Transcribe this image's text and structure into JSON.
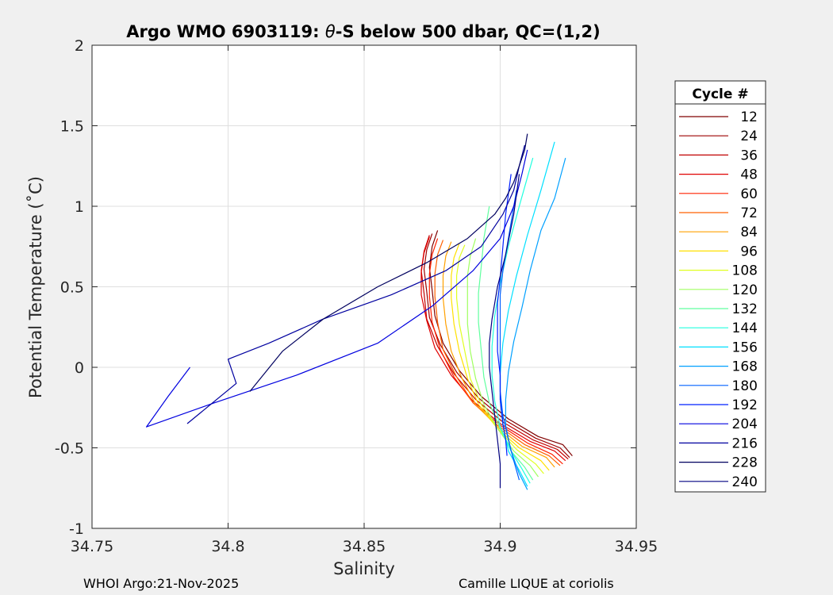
{
  "chart_data": {
    "type": "line",
    "title_prefix": "Argo WMO 6903119: ",
    "title_theta": "θ",
    "title_suffix": "-S below 500 dbar,  QC=(1,2)",
    "xlabel": "Salinity",
    "ylabel": "Potential Temperature (˚C)",
    "xlim": [
      34.75,
      34.95
    ],
    "ylim": [
      -1,
      2
    ],
    "xticks": [
      34.75,
      34.8,
      34.85,
      34.9,
      34.95
    ],
    "xtick_labels": [
      "34.75",
      "34.8",
      "34.85",
      "34.9",
      "34.95"
    ],
    "yticks": [
      -1,
      -0.5,
      0,
      0.5,
      1,
      1.5,
      2
    ],
    "ytick_labels": [
      "-1",
      "-0.5",
      "0",
      "0.5",
      "1",
      "1.5",
      "2"
    ],
    "grid": true,
    "legend_title": "Cycle #",
    "legend_position": "outside-right",
    "series": [
      {
        "name": "12",
        "color": "#800000",
        "salinity": [
          34.9265,
          34.923,
          34.914,
          34.903,
          34.893,
          34.885,
          34.879,
          34.876,
          34.875,
          34.874,
          34.875,
          34.877
        ],
        "theta": [
          -0.55,
          -0.48,
          -0.43,
          -0.32,
          -0.18,
          -0.02,
          0.15,
          0.32,
          0.48,
          0.62,
          0.75,
          0.85
        ]
      },
      {
        "name": "24",
        "color": "#9e0000",
        "salinity": [
          34.9255,
          34.922,
          34.913,
          34.902,
          34.892,
          34.884,
          34.878,
          34.874,
          34.873,
          34.872,
          34.873,
          34.875
        ],
        "theta": [
          -0.56,
          -0.5,
          -0.44,
          -0.33,
          -0.19,
          -0.03,
          0.14,
          0.31,
          0.47,
          0.61,
          0.73,
          0.83
        ]
      },
      {
        "name": "36",
        "color": "#c00000",
        "salinity": [
          34.925,
          34.921,
          34.912,
          34.901,
          34.891,
          34.883,
          34.877,
          34.873,
          34.872,
          34.871,
          34.872,
          34.874
        ],
        "theta": [
          -0.57,
          -0.51,
          -0.45,
          -0.34,
          -0.2,
          -0.04,
          0.13,
          0.3,
          0.46,
          0.6,
          0.72,
          0.82
        ]
      },
      {
        "name": "48",
        "color": "#e00000",
        "salinity": [
          34.924,
          34.92,
          34.911,
          34.9,
          34.89,
          34.882,
          34.876,
          34.873,
          34.871,
          34.871,
          34.872,
          34.874
        ],
        "theta": [
          -0.58,
          -0.52,
          -0.46,
          -0.35,
          -0.21,
          -0.05,
          0.12,
          0.29,
          0.45,
          0.59,
          0.71,
          0.81
        ]
      },
      {
        "name": "60",
        "color": "#ff2000",
        "salinity": [
          34.923,
          34.919,
          34.91,
          34.9,
          34.89,
          34.883,
          34.878,
          34.875,
          34.874,
          34.874,
          34.875,
          34.877
        ],
        "theta": [
          -0.6,
          -0.54,
          -0.47,
          -0.36,
          -0.22,
          -0.06,
          0.11,
          0.28,
          0.44,
          0.58,
          0.7,
          0.8
        ]
      },
      {
        "name": "72",
        "color": "#ff6000",
        "salinity": [
          34.922,
          34.918,
          34.909,
          34.899,
          34.89,
          34.884,
          34.879,
          34.877,
          34.876,
          34.876,
          34.877,
          34.879
        ],
        "theta": [
          -0.61,
          -0.55,
          -0.48,
          -0.36,
          -0.22,
          -0.06,
          0.11,
          0.28,
          0.44,
          0.58,
          0.7,
          0.79
        ]
      },
      {
        "name": "84",
        "color": "#ffa000",
        "salinity": [
          34.92,
          34.917,
          34.908,
          34.899,
          34.891,
          34.886,
          34.882,
          34.88,
          34.879,
          34.879,
          34.88,
          34.882
        ],
        "theta": [
          -0.62,
          -0.56,
          -0.49,
          -0.37,
          -0.23,
          -0.07,
          0.1,
          0.27,
          0.43,
          0.57,
          0.69,
          0.78
        ]
      },
      {
        "name": "96",
        "color": "#ffe000",
        "salinity": [
          34.918,
          34.915,
          34.907,
          34.899,
          34.892,
          34.888,
          34.885,
          34.883,
          34.882,
          34.882,
          34.883,
          34.885
        ],
        "theta": [
          -0.64,
          -0.58,
          -0.5,
          -0.38,
          -0.23,
          -0.07,
          0.1,
          0.27,
          0.43,
          0.57,
          0.68,
          0.77
        ]
      },
      {
        "name": "108",
        "color": "#e0ff20",
        "salinity": [
          34.916,
          34.913,
          34.906,
          34.899,
          34.893,
          34.889,
          34.887,
          34.885,
          34.884,
          34.884,
          34.885,
          34.887
        ],
        "theta": [
          -0.66,
          -0.6,
          -0.51,
          -0.38,
          -0.23,
          -0.07,
          0.1,
          0.27,
          0.43,
          0.57,
          0.68,
          0.76
        ]
      },
      {
        "name": "120",
        "color": "#a0ff60",
        "salinity": [
          34.914,
          34.911,
          34.905,
          34.899,
          34.894,
          34.891,
          34.889,
          34.888,
          34.888,
          34.888,
          34.889,
          34.891
        ],
        "theta": [
          -0.68,
          -0.61,
          -0.52,
          -0.38,
          -0.23,
          -0.07,
          0.1,
          0.27,
          0.43,
          0.57,
          0.69,
          0.8
        ]
      },
      {
        "name": "132",
        "color": "#60ff9f",
        "salinity": [
          34.912,
          34.909,
          34.904,
          34.9,
          34.896,
          34.894,
          34.893,
          34.892,
          34.892,
          34.893,
          34.894,
          34.896
        ],
        "theta": [
          -0.7,
          -0.62,
          -0.52,
          -0.38,
          -0.22,
          -0.06,
          0.11,
          0.28,
          0.46,
          0.62,
          0.8,
          1.0
        ]
      },
      {
        "name": "144",
        "color": "#20ffdf",
        "salinity": [
          34.911,
          34.908,
          34.904,
          34.9,
          34.898,
          34.897,
          34.897,
          34.898,
          34.9,
          34.903,
          34.907,
          34.912
        ],
        "theta": [
          -0.72,
          -0.63,
          -0.52,
          -0.37,
          -0.21,
          -0.05,
          0.13,
          0.32,
          0.52,
          0.75,
          1.0,
          1.3
        ]
      },
      {
        "name": "156",
        "color": "#00e0ff",
        "salinity": [
          34.91,
          34.907,
          34.903,
          34.901,
          34.9,
          34.9,
          34.901,
          34.903,
          34.906,
          34.91,
          34.915,
          34.92
        ],
        "theta": [
          -0.74,
          -0.64,
          -0.52,
          -0.36,
          -0.2,
          -0.04,
          0.15,
          0.35,
          0.57,
          0.82,
          1.1,
          1.4
        ]
      },
      {
        "name": "168",
        "color": "#00a0ff",
        "salinity": [
          34.91,
          34.907,
          34.904,
          34.902,
          34.902,
          34.903,
          34.905,
          34.908,
          34.911,
          34.915,
          34.92,
          34.924
        ],
        "theta": [
          -0.76,
          -0.66,
          -0.52,
          -0.36,
          -0.2,
          -0.03,
          0.16,
          0.37,
          0.6,
          0.85,
          1.05,
          1.3
        ]
      },
      {
        "name": "180",
        "color": "#0060ff",
        "salinity": [
          34.907,
          34.905,
          34.903,
          34.901,
          34.9,
          34.9,
          34.9,
          34.9,
          34.9,
          34.901,
          34.903,
          34.906
        ],
        "theta": [
          -0.7,
          -0.58,
          -0.45,
          -0.3,
          -0.15,
          0.0,
          0.15,
          0.3,
          0.45,
          0.6,
          0.8,
          1.1
        ]
      },
      {
        "name": "192",
        "color": "#0020ff",
        "salinity": [
          34.9025,
          34.902,
          34.901,
          34.9,
          34.9,
          34.899,
          34.899,
          34.899,
          34.9,
          34.901,
          34.902,
          34.904
        ],
        "theta": [
          -0.55,
          -0.45,
          -0.35,
          -0.2,
          -0.05,
          0.1,
          0.25,
          0.4,
          0.55,
          0.75,
          0.95,
          1.2
        ]
      },
      {
        "name": "204",
        "color": "#0000df",
        "salinity": [
          34.786,
          34.778,
          34.77,
          34.795,
          34.825,
          34.855,
          34.875,
          34.89,
          34.9,
          34.905,
          34.908,
          34.91
        ],
        "theta": [
          0.0,
          -0.18,
          -0.37,
          -0.22,
          -0.05,
          0.15,
          0.38,
          0.6,
          0.8,
          1.0,
          1.2,
          1.35
        ]
      },
      {
        "name": "216",
        "color": "#00009f",
        "salinity": [
          34.785,
          34.803,
          34.8,
          34.815,
          34.835,
          34.86,
          34.88,
          34.893,
          34.901,
          34.905,
          34.907,
          34.909
        ],
        "theta": [
          -0.35,
          -0.1,
          0.05,
          0.15,
          0.3,
          0.45,
          0.6,
          0.75,
          0.95,
          1.1,
          1.25,
          1.38
        ]
      },
      {
        "name": "228",
        "color": "#00005f",
        "salinity": [
          34.808,
          34.82,
          34.835,
          34.855,
          34.873,
          34.888,
          34.898,
          34.902,
          34.905,
          34.907,
          34.909,
          34.91
        ],
        "theta": [
          -0.15,
          0.1,
          0.3,
          0.5,
          0.65,
          0.8,
          0.95,
          1.05,
          1.15,
          1.25,
          1.35,
          1.45
        ]
      },
      {
        "name": "240",
        "color": "#000080",
        "salinity": [
          34.9,
          34.9,
          34.899,
          34.898,
          34.897,
          34.896,
          34.896,
          34.897,
          34.899,
          34.902,
          34.905,
          34.907
        ],
        "theta": [
          -0.75,
          -0.6,
          -0.45,
          -0.3,
          -0.15,
          0.0,
          0.15,
          0.3,
          0.5,
          0.7,
          0.95,
          1.2
        ]
      }
    ]
  },
  "footer": {
    "left": "WHOI Argo:21-Nov-2025",
    "right": "Camille LIQUE at coriolis"
  }
}
